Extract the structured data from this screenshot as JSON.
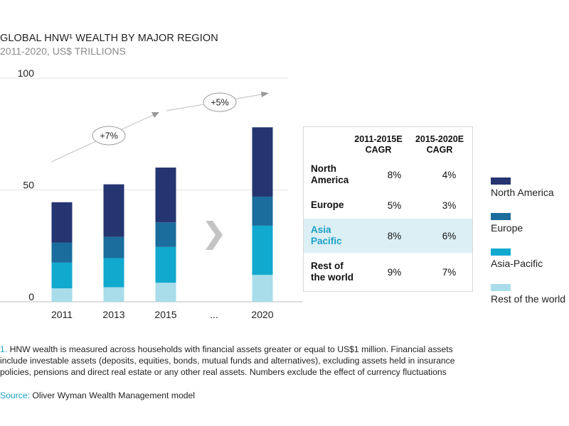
{
  "title": "GLOBAL HNW¹ WEALTH BY MAJOR REGION",
  "subtitle": "2011-2020, US$ TRILLIONS",
  "colors": {
    "north_america": "#253571",
    "europe": "#1a6d9c",
    "asia_pacific": "#12a9cf",
    "rest_of_world": "#a8dde9",
    "accent": "#1aa0c5",
    "arrow": "#c8c8c8"
  },
  "chart_data": {
    "type": "bar",
    "stacked": true,
    "categories": [
      "2011",
      "2013",
      "2015",
      "...",
      "2020"
    ],
    "series": [
      {
        "name": "Rest of the world",
        "values": [
          6,
          6.5,
          8.5,
          null,
          12
        ]
      },
      {
        "name": "Asia-Pacific",
        "values": [
          11.5,
          13,
          16,
          null,
          22
        ]
      },
      {
        "name": "Europe",
        "values": [
          9,
          9.5,
          11,
          null,
          13
        ]
      },
      {
        "name": "North America",
        "values": [
          18,
          23.5,
          24.5,
          null,
          31
        ]
      }
    ],
    "yticks": [
      "0",
      "50",
      "100"
    ],
    "ylim": [
      0,
      100
    ],
    "grid": true,
    "annotations": [
      "+7%",
      "+5%"
    ],
    "legend_position": "right"
  },
  "cagr_table": {
    "headers": [
      "2011-2015E CAGR",
      "2015-2020E CAGR"
    ],
    "rows": [
      {
        "region": "North America",
        "c1": "8%",
        "c2": "4%"
      },
      {
        "region": "Europe",
        "c1": "5%",
        "c2": "3%"
      },
      {
        "region": "Asia Pacific",
        "c1": "8%",
        "c2": "6%"
      },
      {
        "region": "Rest of the world",
        "c1": "9%",
        "c2": "7%"
      }
    ]
  },
  "legend": [
    "North America",
    "Europe",
    "Asia-Pacific",
    "Rest of the world"
  ],
  "footnote_number": "1.",
  "footnote_text": "HNW wealth is measured across households with financial assets greater or equal to US$1 million. Financial assets include investable assets (deposits, equities, bonds, mutual funds and alternatives), excluding assets held in insurance policies, pensions and direct real estate or any other real assets. Numbers exclude the effect of currency fluctuations",
  "source_label": "Source:",
  "source_text": " Oliver Wyman Wealth Management model"
}
